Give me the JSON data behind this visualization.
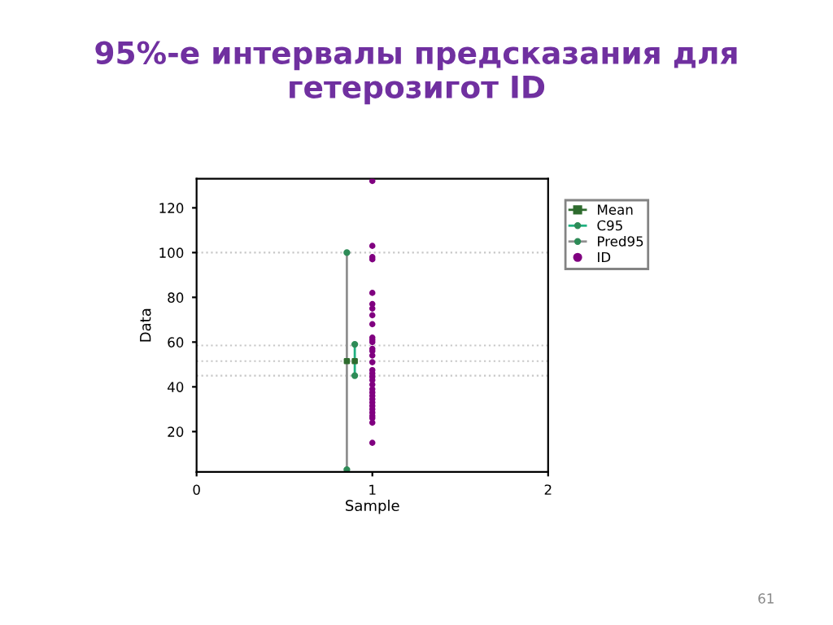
{
  "chart_data": {
    "type": "scatter",
    "title": "95%-е интервалы предсказания для гетерозигот ID",
    "xlabel": "Sample",
    "ylabel": "Data",
    "xlim": [
      0,
      2
    ],
    "xticks": [
      0,
      1,
      2
    ],
    "ylim": [
      2,
      133
    ],
    "yticks": [
      20,
      40,
      60,
      80,
      100,
      120
    ],
    "legend": "top right",
    "grid": false,
    "series": [
      {
        "name": "Mean",
        "type": "scatter",
        "color": "#2e6b2e",
        "marker": "square",
        "x": [
          0.855,
          0.9
        ],
        "values": [
          51.5,
          51.5
        ]
      },
      {
        "name": "C95",
        "type": "line",
        "color": "#20b080",
        "marker": "circle",
        "x": [
          0.9,
          0.9
        ],
        "values": [
          45,
          59
        ]
      },
      {
        "name": "Pred95",
        "type": "line",
        "color": "#909090",
        "marker": "circle",
        "x": [
          0.855,
          0.855
        ],
        "values": [
          3,
          100
        ]
      },
      {
        "name": "ID",
        "color": "#800080",
        "marker": "circle",
        "x": [
          1,
          1,
          1,
          1,
          1,
          1,
          1,
          1,
          1,
          1,
          1,
          1,
          1,
          1,
          1,
          1,
          1,
          1,
          1,
          1,
          1,
          1,
          1,
          1,
          1,
          1,
          1,
          1,
          1,
          1,
          1,
          1,
          1
        ],
        "values": [
          132,
          103,
          98,
          97,
          82,
          77,
          75,
          72,
          68,
          62,
          61,
          60,
          57,
          56,
          54,
          51,
          47.5,
          46,
          44.5,
          43,
          41,
          39,
          37.5,
          36,
          34.5,
          33,
          31.5,
          30,
          28.5,
          27,
          26,
          24,
          15
        ]
      }
    ],
    "ref_lines": [
      {
        "axis": "y",
        "value": 100,
        "color": "#c8c8c8",
        "line_style": "dotted"
      },
      {
        "axis": "y",
        "value": 58.5,
        "color": "#c8c8c8",
        "line_style": "dotted"
      },
      {
        "axis": "y",
        "value": 51.5,
        "color": "#c8c8c8",
        "line_style": "dotted"
      },
      {
        "axis": "y",
        "value": 45,
        "color": "#c8c8c8",
        "line_style": "dotted"
      }
    ],
    "annotations": [
      "61"
    ]
  }
}
